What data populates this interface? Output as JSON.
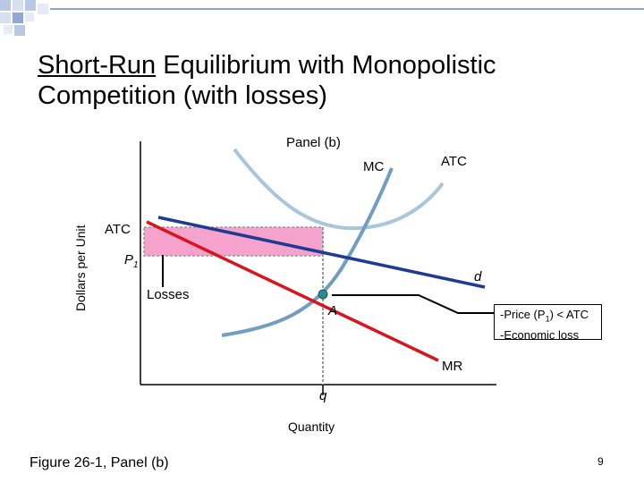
{
  "slide": {
    "title_underlined": "Short-Run",
    "title_rest_line1": " Equilibrium with Monopolistic",
    "title_line2": "Competition (with losses)",
    "panel": "Panel (b)",
    "footer": "Figure 26-1, Panel (b)",
    "page_number": "9"
  },
  "diagram": {
    "y_axis_label": "Dollars per Unit",
    "x_axis_label": "Quantity",
    "curve_mc": "MC",
    "curve_atc": "ATC",
    "atc_level": "ATC",
    "price_level_base": "P",
    "price_level_sub": "1",
    "demand": "d",
    "losses": "Losses",
    "point_a": "A",
    "mr": "MR",
    "quantity": "q",
    "note_line1_a": "-Price (P",
    "note_line1_sub": "1",
    "note_line1_b": ") < ATC",
    "note_line2": "-Economic loss",
    "colors": {
      "mc_curve": "#6f9ec0",
      "atc_curve": "#a9c6da",
      "demand_curve": "#1f3a93",
      "mr_curve": "#d8141c",
      "loss_area": "#f5a3cc",
      "point": "#2d8a8a"
    }
  }
}
